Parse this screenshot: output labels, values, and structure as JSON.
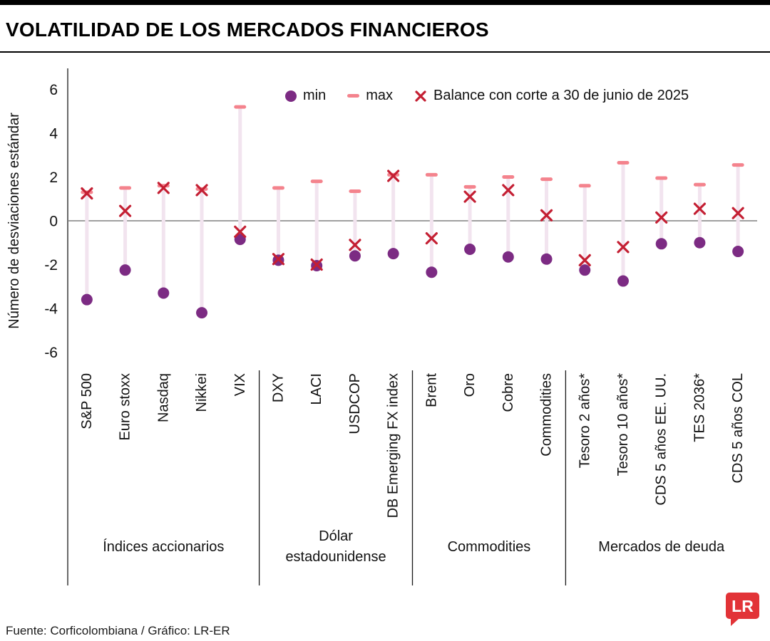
{
  "header": {
    "title": "VOLATILIDAD DE LOS MERCADOS FINANCIEROS"
  },
  "legend": {
    "min": "min",
    "max": "max",
    "balance": "Balance con corte a 30 de junio de 2025"
  },
  "chart_data": {
    "type": "dot_range",
    "title": "VOLATILIDAD DE LOS MERCADOS FINANCIEROS",
    "ylabel": "Número de desviaciones estándar",
    "ylim": [
      -6.7,
      6.7
    ],
    "yticks": [
      6,
      4,
      2,
      0,
      -2,
      -4,
      -6
    ],
    "grid": false,
    "zero_line": 0,
    "categories": [
      "S&P 500",
      "Euro stoxx",
      "Nasdaq",
      "Nikkei",
      "VIX",
      "DXY",
      "LACI",
      "USDCOP",
      "DB Emerging FX index",
      "Brent",
      "Oro",
      "Cobre",
      "Commodities",
      "Tesoro 2 años*",
      "Tesoro 10 años*",
      "CDS 5 años EE. UU.",
      "TES 2036*",
      "CDS 5 años COL"
    ],
    "series": [
      {
        "name": "min",
        "marker": "dot",
        "color": "#7c2b83",
        "values": [
          -3.6,
          -2.25,
          -3.3,
          -4.2,
          -0.85,
          -1.8,
          -2.05,
          -1.6,
          -1.5,
          -2.35,
          -1.3,
          -1.65,
          -1.75,
          -2.25,
          -2.75,
          -1.05,
          -1.0,
          -1.4
        ]
      },
      {
        "name": "max",
        "marker": "dash",
        "color": "#f4838d",
        "values": [
          1.3,
          1.5,
          1.6,
          1.45,
          5.2,
          1.5,
          1.8,
          1.35,
          2.1,
          2.1,
          1.55,
          2.0,
          1.9,
          1.6,
          2.65,
          1.95,
          1.65,
          2.55
        ]
      },
      {
        "name": "balance",
        "marker": "x",
        "color": "#c41f33",
        "values": [
          1.25,
          0.45,
          1.5,
          1.4,
          -0.5,
          -1.75,
          -2.0,
          -1.1,
          2.05,
          -0.8,
          1.1,
          1.4,
          0.25,
          -1.8,
          -1.2,
          0.15,
          0.55,
          0.35
        ]
      }
    ],
    "groups": [
      {
        "label_lines": [
          "Índices accionarios"
        ],
        "span": [
          0,
          4
        ]
      },
      {
        "label_lines": [
          "Dólar",
          "estadounidense"
        ],
        "span": [
          5,
          8
        ]
      },
      {
        "label_lines": [
          "Commodities"
        ],
        "span": [
          9,
          12
        ]
      },
      {
        "label_lines": [
          "Mercados de deuda"
        ],
        "span": [
          13,
          17
        ]
      }
    ],
    "legend_position": "top"
  },
  "colors": {
    "min_purple": "#7c2b83",
    "max_pink": "#f4838d",
    "balance_red": "#c41f33",
    "range_bar": "#f2e4ef",
    "zero_line": "#808080",
    "axis": "#1a1a1a",
    "logo_red": "#e23337"
  },
  "footer": {
    "source": "Fuente: Corficolombiana / Gráfico: LR-ER"
  },
  "logo": {
    "text": "LR"
  }
}
